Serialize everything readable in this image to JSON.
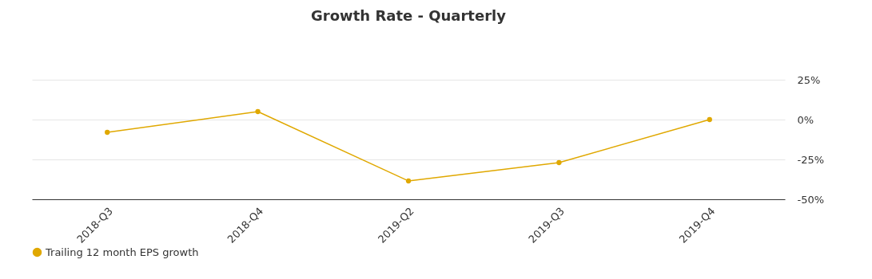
{
  "chart_data": {
    "type": "line",
    "title": "Growth Rate - Quarterly",
    "categories": [
      "2018-Q3",
      "2018-Q4",
      "2019-Q2",
      "2019-Q3",
      "2019-Q4"
    ],
    "series": [
      {
        "name": "Trailing 12 month EPS growth",
        "color": "#e0a800",
        "values": [
          -8,
          5,
          -38.5,
          -27,
          0
        ]
      }
    ],
    "ylim": [
      -50,
      25
    ],
    "yticks": [
      {
        "value": -50,
        "label": "-50%"
      },
      {
        "value": -25,
        "label": "-25%"
      },
      {
        "value": 0,
        "label": "0%"
      },
      {
        "value": 25,
        "label": "25%"
      }
    ],
    "grid": "y",
    "legend": "bottom",
    "marker": "circle",
    "line_style": "solid"
  }
}
